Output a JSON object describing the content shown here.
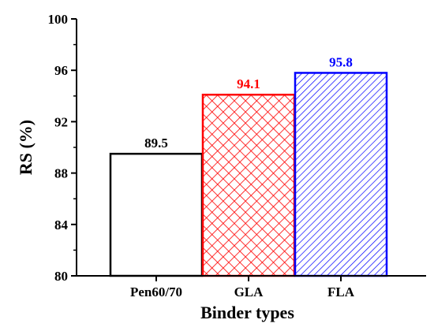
{
  "chart_data": {
    "type": "bar",
    "title": "",
    "xlabel": "Binder types",
    "ylabel": "RS (%)",
    "ylim": [
      80,
      100
    ],
    "yticks": [
      80,
      84,
      88,
      92,
      96,
      100
    ],
    "grid": false,
    "categories": [
      "Pen60/70",
      "GLA",
      "FLA"
    ],
    "values": [
      89.5,
      94.1,
      95.8
    ],
    "data_labels": [
      "89.5",
      "94.1",
      "95.8"
    ],
    "bar_styles": [
      {
        "fill": "none",
        "color": "#000000"
      },
      {
        "fill": "crosshatch",
        "color": "#ff0000"
      },
      {
        "fill": "diagonal-hatch",
        "color": "#0000ff"
      }
    ]
  }
}
